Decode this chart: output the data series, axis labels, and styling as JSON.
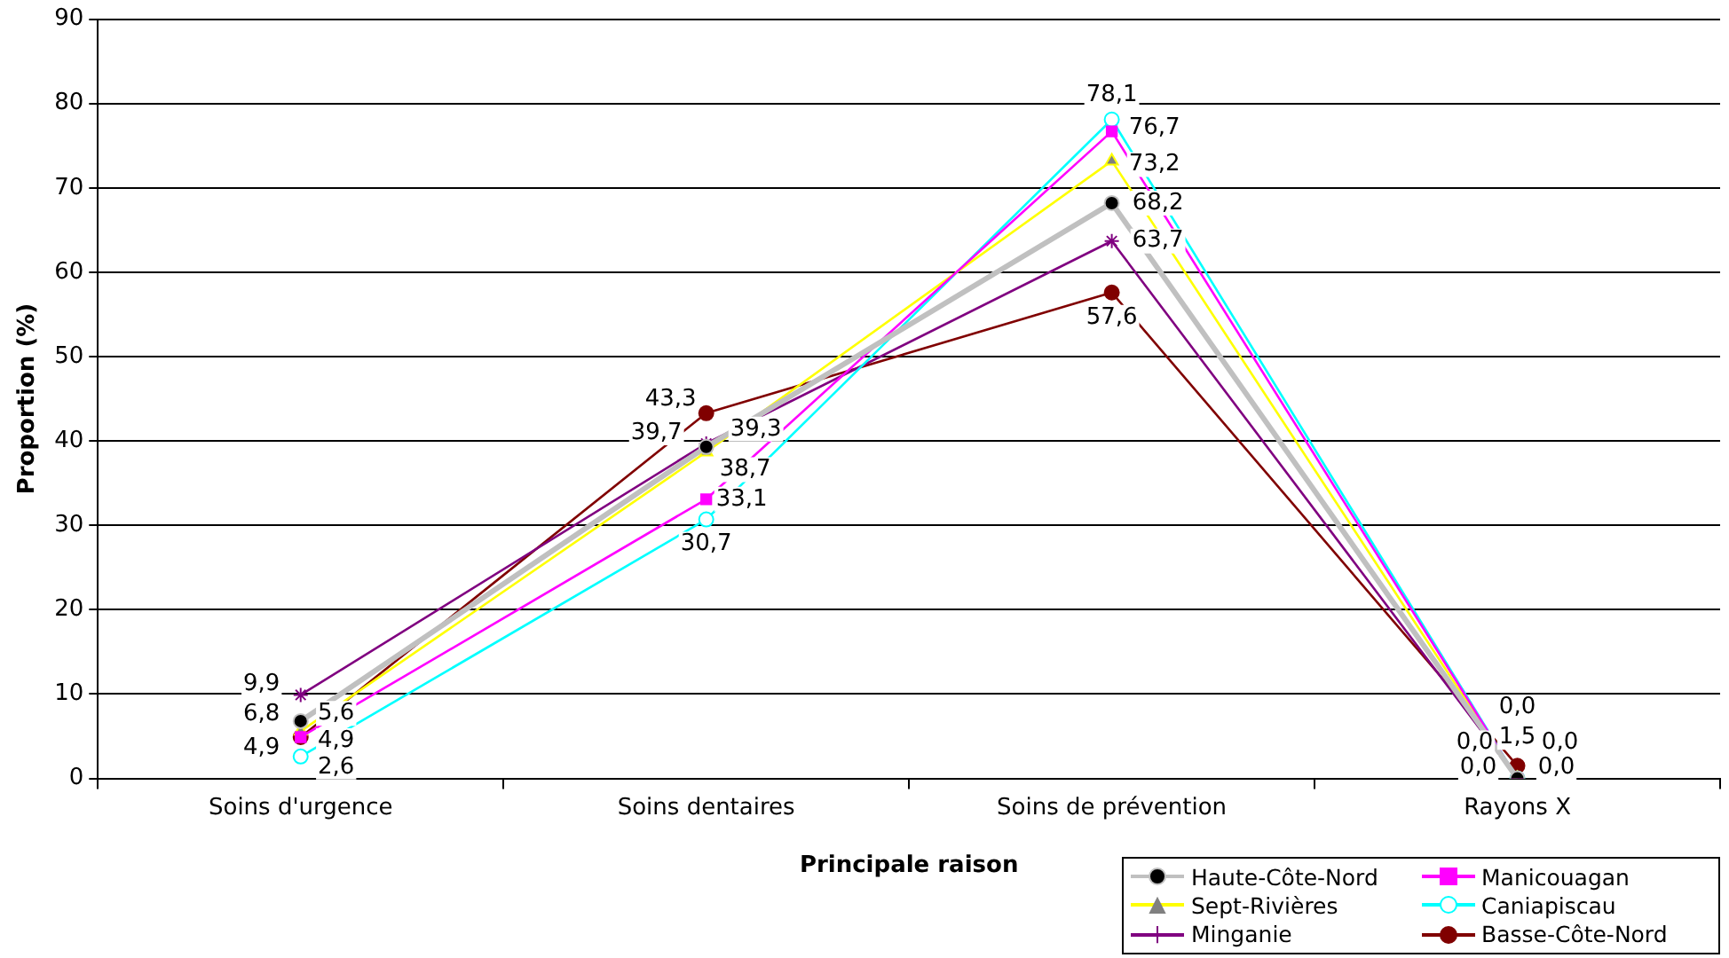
{
  "chart_data": {
    "type": "line",
    "xlabel": "Principale raison",
    "ylabel": "Proportion (%)",
    "categories": [
      "Soins d'urgence",
      "Soins dentaires",
      "Soins de prévention",
      "Rayons X"
    ],
    "ylim": [
      0,
      90
    ],
    "yticks": [
      0,
      10,
      20,
      30,
      40,
      50,
      60,
      70,
      80,
      90
    ],
    "grid": "y",
    "legend": "bottom right",
    "series": [
      {
        "name": "Haute-Côte-Nord",
        "color": "#c0c0c0",
        "colors": [
          "#000000",
          "#000000",
          "#000000",
          "#000000"
        ],
        "marker": "circle",
        "values": [
          6.8,
          39.3,
          68.2,
          0.0
        ],
        "value_labels": [
          "6,8",
          "39,3",
          "68,2",
          "0,0"
        ]
      },
      {
        "name": "Manicouagan",
        "color": "#ff00ff",
        "colors": [
          "#ff00ff",
          "#ff00ff",
          "#ff00ff",
          "#ff00ff"
        ],
        "marker": "square",
        "values": [
          4.9,
          33.1,
          76.7,
          0.0
        ],
        "value_labels": [
          "4,9",
          "33,1",
          "76,7",
          "0,0"
        ]
      },
      {
        "name": "Sept-Rivières",
        "color": "#ffff00",
        "colors": [
          "#808080",
          "#808080",
          "#808080",
          "#808080"
        ],
        "marker": "triangle",
        "values": [
          5.6,
          38.7,
          73.2,
          0.0
        ],
        "value_labels": [
          "5,6",
          "38,7",
          "73,2",
          "0,0"
        ]
      },
      {
        "name": "Caniapiscau",
        "color": "#00ffff",
        "colors": [
          "#ffffff",
          "#ffffff",
          "#ffffff",
          "#ffffff"
        ],
        "marker": "circle",
        "values": [
          2.6,
          30.7,
          78.1,
          0.0
        ],
        "value_labels": [
          "2,6",
          "30,7",
          "78,1",
          "0,0"
        ]
      },
      {
        "name": "Minganie",
        "color": "#800080",
        "colors": [
          "#800080",
          "#800080",
          "#800080",
          "#800080"
        ],
        "marker": "cross",
        "values": [
          9.9,
          39.7,
          63.7,
          0.0
        ],
        "value_labels": [
          "9,9",
          "39,7",
          "63,7",
          "0,0"
        ]
      },
      {
        "name": "Basse-Côte-Nord",
        "color": "#800000",
        "colors": [
          "#800000",
          "#800000",
          "#800000",
          "#800000"
        ],
        "marker": "circle",
        "values": [
          4.9,
          43.3,
          57.6,
          1.5
        ],
        "value_labels": [
          "4,9",
          "43,3",
          "57,6",
          "1,5"
        ]
      }
    ]
  }
}
